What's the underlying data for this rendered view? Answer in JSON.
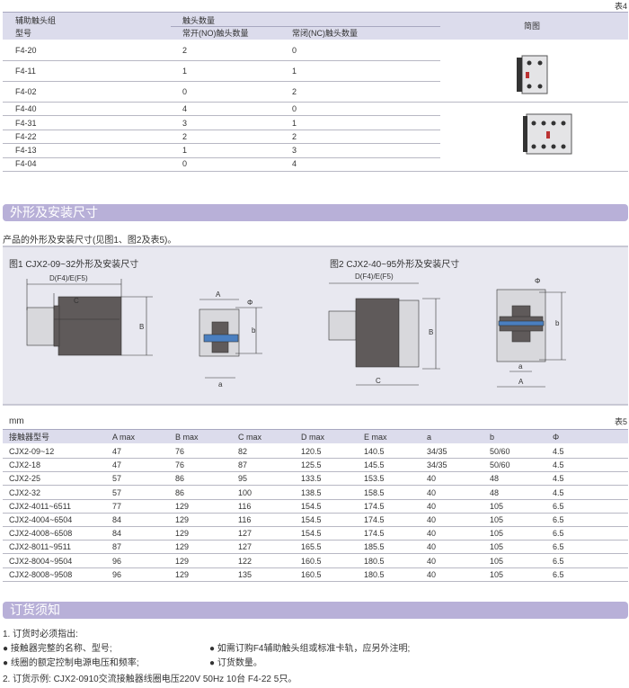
{
  "table4": {
    "label": "表4",
    "header": {
      "group": "辅助触头组",
      "model": "型号",
      "contacts": "触头数量",
      "no": "常开(NO)触头数量",
      "nc": "常闭(NC)触头数量",
      "diagram": "简图"
    },
    "rows": [
      [
        "F4-20",
        "2",
        "0"
      ],
      [
        "F4-11",
        "1",
        "1"
      ],
      [
        "F4-02",
        "0",
        "2"
      ],
      [
        "F4-40",
        "4",
        "0"
      ],
      [
        "F4-31",
        "3",
        "1"
      ],
      [
        "F4-22",
        "2",
        "2"
      ],
      [
        "F4-13",
        "1",
        "3"
      ],
      [
        "F4-04",
        "0",
        "4"
      ]
    ]
  },
  "section1": {
    "title": "外形及安装尺寸",
    "intro": "产品的外形及安装尺寸(见图1、图2及表5)。",
    "fig1": {
      "title": "图1 CJX2-09~32外形及安装尺寸",
      "D": "D(F4)/E(F5)",
      "C": "C",
      "B": "B",
      "A": "A",
      "b": "b",
      "a": "a",
      "phi": "Φ"
    },
    "fig2": {
      "title": "图2 CJX2-40~95外形及安装尺寸",
      "D": "D(F4)/E(F5)",
      "C": "C",
      "B": "B",
      "A": "A",
      "b": "b",
      "a": "a",
      "phi": "Φ"
    }
  },
  "table5": {
    "unit": "mm",
    "label": "表5",
    "headers": [
      "接触器型号",
      "A max",
      "B max",
      "C max",
      "D max",
      "E max",
      "a",
      "b",
      "Φ"
    ],
    "rows": [
      [
        "CJX2-09~12",
        "47",
        "76",
        "82",
        "120.5",
        "140.5",
        "34/35",
        "50/60",
        "4.5"
      ],
      [
        "CJX2-18",
        "47",
        "76",
        "87",
        "125.5",
        "145.5",
        "34/35",
        "50/60",
        "4.5"
      ],
      [
        "CJX2-25",
        "57",
        "86",
        "95",
        "133.5",
        "153.5",
        "40",
        "48",
        "4.5"
      ],
      [
        "CJX2-32",
        "57",
        "86",
        "100",
        "138.5",
        "158.5",
        "40",
        "48",
        "4.5"
      ],
      [
        "CJX2-4011~6511",
        "77",
        "129",
        "116",
        "154.5",
        "174.5",
        "40",
        "105",
        "6.5"
      ],
      [
        "CJX2-4004~6504",
        "84",
        "129",
        "116",
        "154.5",
        "174.5",
        "40",
        "105",
        "6.5"
      ],
      [
        "CJX2-4008~6508",
        "84",
        "129",
        "127",
        "154.5",
        "174.5",
        "40",
        "105",
        "6.5"
      ],
      [
        "CJX2-8011~9511",
        "87",
        "129",
        "127",
        "165.5",
        "185.5",
        "40",
        "105",
        "6.5"
      ],
      [
        "CJX2-8004~9504",
        "96",
        "129",
        "122",
        "160.5",
        "180.5",
        "40",
        "105",
        "6.5"
      ],
      [
        "CJX2-8008~9508",
        "96",
        "129",
        "135",
        "160.5",
        "180.5",
        "40",
        "105",
        "6.5"
      ]
    ]
  },
  "section2": {
    "title": "订货须知",
    "item1": "1. 订货时必须指出:",
    "bullets": [
      "接触器完整的名称、型号;",
      "如需订购F4辅助触头组或标准卡轨，应另外注明;",
      "线圈的额定控制电源电压和频率;",
      "订货数量。"
    ],
    "item2": "2. 订货示例:  CJX2-0910交流接触器线圈电压220V  50Hz    10台   F4-22  5只。"
  },
  "colors": {
    "header_bg": "#dcdcec",
    "section_bar": "#b8b0d8",
    "panel_bg": "#e8e8f0",
    "accent_blue": "#4a7fc0"
  }
}
